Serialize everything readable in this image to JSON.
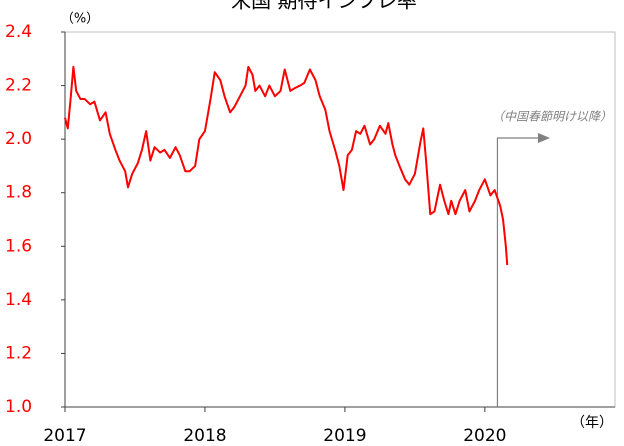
{
  "chart_data": {
    "type": "line",
    "title": "米国 期待インフレ率",
    "y_unit": "（%）",
    "x_unit": "（年）",
    "annotation": {
      "text": "（中国春節明け以降）",
      "x": 2020.09
    },
    "xlim": [
      2017,
      2020.93
    ],
    "xticks": [
      2017,
      2018,
      2019,
      2020
    ],
    "ylim": [
      1,
      2.4
    ],
    "yticks": [
      {
        "value": 1,
        "label": "1.0"
      },
      1.2,
      1.4,
      1.6,
      1.8,
      {
        "value": 2,
        "label": "2.0"
      },
      2.2,
      2.4
    ],
    "x": [
      2017.0,
      2017.02,
      2017.04,
      2017.06,
      2017.08,
      2017.11,
      2017.14,
      2017.18,
      2017.21,
      2017.25,
      2017.29,
      2017.32,
      2017.36,
      2017.39,
      2017.43,
      2017.45,
      2017.48,
      2017.52,
      2017.55,
      2017.58,
      2017.61,
      2017.64,
      2017.68,
      2017.71,
      2017.75,
      2017.79,
      2017.82,
      2017.86,
      2017.89,
      2017.93,
      2017.96,
      2018.0,
      2018.04,
      2018.07,
      2018.11,
      2018.14,
      2018.18,
      2018.21,
      2018.25,
      2018.29,
      2018.31,
      2018.34,
      2018.36,
      2018.39,
      2018.43,
      2018.46,
      2018.5,
      2018.54,
      2018.57,
      2018.61,
      2018.64,
      2018.68,
      2018.71,
      2018.75,
      2018.79,
      2018.82,
      2018.86,
      2018.89,
      2018.93,
      2018.96,
      2018.99,
      2019.02,
      2019.05,
      2019.08,
      2019.11,
      2019.14,
      2019.18,
      2019.21,
      2019.25,
      2019.29,
      2019.31,
      2019.34,
      2019.36,
      2019.39,
      2019.43,
      2019.46,
      2019.5,
      2019.54,
      2019.56,
      2019.58,
      2019.61,
      2019.64,
      2019.68,
      2019.71,
      2019.74,
      2019.76,
      2019.79,
      2019.82,
      2019.86,
      2019.89,
      2019.93,
      2019.96,
      2020.0,
      2020.04,
      2020.07,
      2020.11,
      2020.13,
      2020.15,
      2020.16
    ],
    "series": [
      {
        "name": "期待インフレ率",
        "color": "#ff0000",
        "values": [
          2.08,
          2.04,
          2.15,
          2.27,
          2.18,
          2.15,
          2.15,
          2.13,
          2.14,
          2.07,
          2.1,
          2.02,
          1.96,
          1.92,
          1.88,
          1.82,
          1.87,
          1.91,
          1.96,
          2.03,
          1.92,
          1.97,
          1.95,
          1.96,
          1.93,
          1.97,
          1.94,
          1.88,
          1.88,
          1.9,
          2.0,
          2.03,
          2.15,
          2.25,
          2.22,
          2.16,
          2.1,
          2.12,
          2.16,
          2.2,
          2.27,
          2.24,
          2.18,
          2.2,
          2.16,
          2.2,
          2.16,
          2.18,
          2.26,
          2.18,
          2.19,
          2.2,
          2.21,
          2.26,
          2.22,
          2.16,
          2.11,
          2.03,
          1.96,
          1.9,
          1.81,
          1.94,
          1.96,
          2.03,
          2.02,
          2.05,
          1.98,
          2.0,
          2.05,
          2.02,
          2.06,
          1.98,
          1.94,
          1.9,
          1.85,
          1.83,
          1.87,
          1.99,
          2.04,
          1.92,
          1.72,
          1.73,
          1.83,
          1.77,
          1.72,
          1.77,
          1.72,
          1.77,
          1.81,
          1.73,
          1.77,
          1.81,
          1.85,
          1.79,
          1.81,
          1.75,
          1.7,
          1.6,
          1.53
        ]
      }
    ]
  }
}
